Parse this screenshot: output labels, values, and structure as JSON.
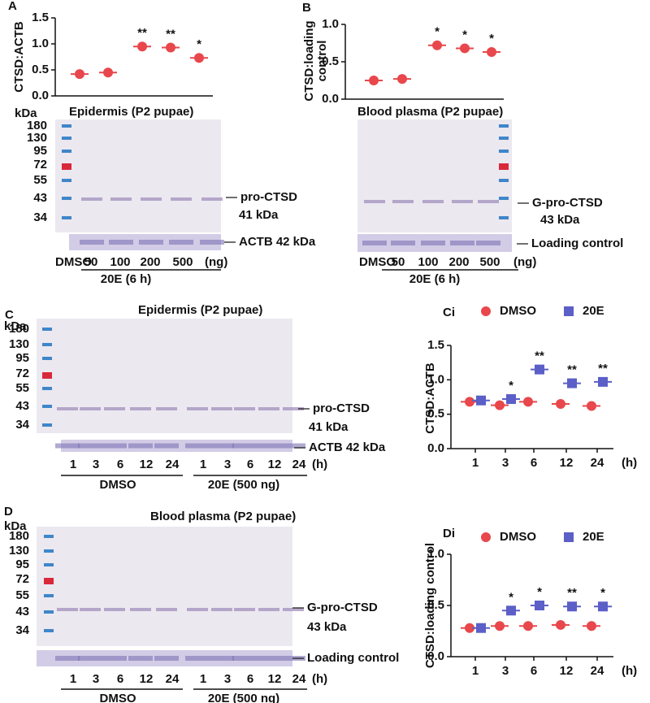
{
  "chart_data": [
    {
      "type": "scatter",
      "label": "A",
      "y_label": "CTSD:ACTB",
      "categories": [
        null,
        null,
        null,
        null,
        null
      ],
      "series": [
        {
          "color": "#e8474c",
          "marker": "circle",
          "values": [
            0.42,
            0.45,
            0.95,
            0.93,
            0.73
          ]
        }
      ],
      "annotations": [
        {
          "index": 2,
          "text": "**"
        },
        {
          "index": 3,
          "text": "**"
        },
        {
          "index": 4,
          "text": "*"
        }
      ],
      "ylim": [
        0,
        1.5
      ],
      "yticks": [
        {
          "value": 0,
          "label": "0.0"
        },
        0.5,
        {
          "value": 1,
          "label": "1.0"
        },
        1.5
      ]
    },
    {
      "type": "scatter",
      "label": "B",
      "y_label": [
        "CTSD:loading",
        "control"
      ],
      "categories": [
        null,
        null,
        null,
        null,
        null
      ],
      "series": [
        {
          "color": "#e8474c",
          "marker": "circle",
          "values": [
            0.25,
            0.27,
            0.72,
            0.68,
            0.63
          ]
        }
      ],
      "annotations": [
        {
          "index": 2,
          "text": "*"
        },
        {
          "index": 3,
          "text": "*"
        },
        {
          "index": 4,
          "text": "*"
        }
      ],
      "ylim": [
        0,
        1
      ],
      "yticks": [
        {
          "value": 0,
          "label": "0.0"
        },
        0.5,
        {
          "value": 1,
          "label": "1.0"
        }
      ]
    },
    {
      "type": "scatter",
      "label": "Ci",
      "y_label": "CTSD:ACTB",
      "x_unit": "(h)",
      "categories": [
        "1",
        "3",
        "6",
        "12",
        "24"
      ],
      "series": [
        {
          "name": "DMSO",
          "color": "#e8474c",
          "marker": "circle",
          "values": [
            0.68,
            0.63,
            0.68,
            0.65,
            0.62
          ]
        },
        {
          "name": "20E",
          "color": "#5b5fc7",
          "marker": "square",
          "values": [
            0.7,
            0.72,
            1.15,
            0.95,
            0.97
          ]
        }
      ],
      "annotations": [
        {
          "index": 1,
          "text": "*"
        },
        {
          "index": 2,
          "text": "**"
        },
        {
          "index": 3,
          "text": "**"
        },
        {
          "index": 4,
          "text": "**"
        }
      ],
      "ylim": [
        0,
        1.5
      ],
      "yticks": [
        {
          "value": 0,
          "label": "0.0"
        },
        0.5,
        {
          "value": 1,
          "label": "1.0"
        },
        1.5
      ]
    },
    {
      "type": "scatter",
      "label": "Di",
      "y_label": "CTSD:loading control",
      "x_unit": "(h)",
      "categories": [
        "1",
        "3",
        "6",
        "12",
        "24"
      ],
      "series": [
        {
          "name": "DMSO",
          "color": "#e8474c",
          "marker": "circle",
          "values": [
            0.28,
            0.3,
            0.3,
            0.31,
            0.3
          ]
        },
        {
          "name": "20E",
          "color": "#5b5fc7",
          "marker": "square",
          "values": [
            0.28,
            0.45,
            0.5,
            0.49,
            0.49
          ]
        }
      ],
      "annotations": [
        {
          "index": 1,
          "text": "*"
        },
        {
          "index": 2,
          "text": "*"
        },
        {
          "index": 3,
          "text": "**"
        },
        {
          "index": 4,
          "text": "*"
        }
      ],
      "ylim": [
        0,
        1
      ],
      "yticks": [
        {
          "value": 0,
          "label": "0.0"
        },
        0.5,
        {
          "value": 1,
          "label": "1.0"
        }
      ]
    }
  ],
  "blots": [
    {
      "title": "Epidermis (P2 pupae)",
      "kda": "kDa",
      "markers": [
        180,
        130,
        95,
        72,
        55,
        43,
        34
      ],
      "band_label": [
        "pro-CTSD",
        "41 kDa"
      ],
      "strip_label": "ACTB 42 kDa",
      "lanes": [
        "DMSO",
        "50",
        "100",
        "200",
        "500"
      ],
      "lane_unit": "(ng)",
      "groups": [
        "20E (6 h)"
      ]
    },
    {
      "title": "Blood plasma (P2 pupae)",
      "band_label": [
        "G-pro-CTSD",
        "43 kDa"
      ],
      "strip_label": "Loading control",
      "lanes": [
        "DMSO",
        "50",
        "100",
        "200",
        "500"
      ],
      "lane_unit": "(ng)",
      "groups": [
        "20E (6 h)"
      ]
    },
    {
      "panel_label": "C",
      "title": "Epidermis (P2 pupae)",
      "kda": "kDa",
      "markers": [
        180,
        130,
        95,
        72,
        55,
        43,
        34
      ],
      "band_label": [
        "pro-CTSD",
        "41 kDa"
      ],
      "strip_label": "ACTB 42 kDa",
      "lanes": [
        "1",
        "3",
        "6",
        "12",
        "24",
        "1",
        "3",
        "6",
        "12",
        "24"
      ],
      "lane_unit": "(h)",
      "groups": [
        "DMSO",
        "20E (500 ng)"
      ]
    },
    {
      "panel_label": "D",
      "title": "Blood plasma (P2 pupae)",
      "kda": "kDa",
      "markers": [
        180,
        130,
        95,
        72,
        55,
        43,
        34
      ],
      "band_label": [
        "G-pro-CTSD",
        "43 kDa"
      ],
      "strip_label": "Loading control",
      "lanes": [
        "1",
        "3",
        "6",
        "12",
        "24",
        "1",
        "3",
        "6",
        "12",
        "24"
      ],
      "lane_unit": "(h)",
      "groups": [
        "DMSO",
        "20E (500 ng)"
      ]
    }
  ]
}
